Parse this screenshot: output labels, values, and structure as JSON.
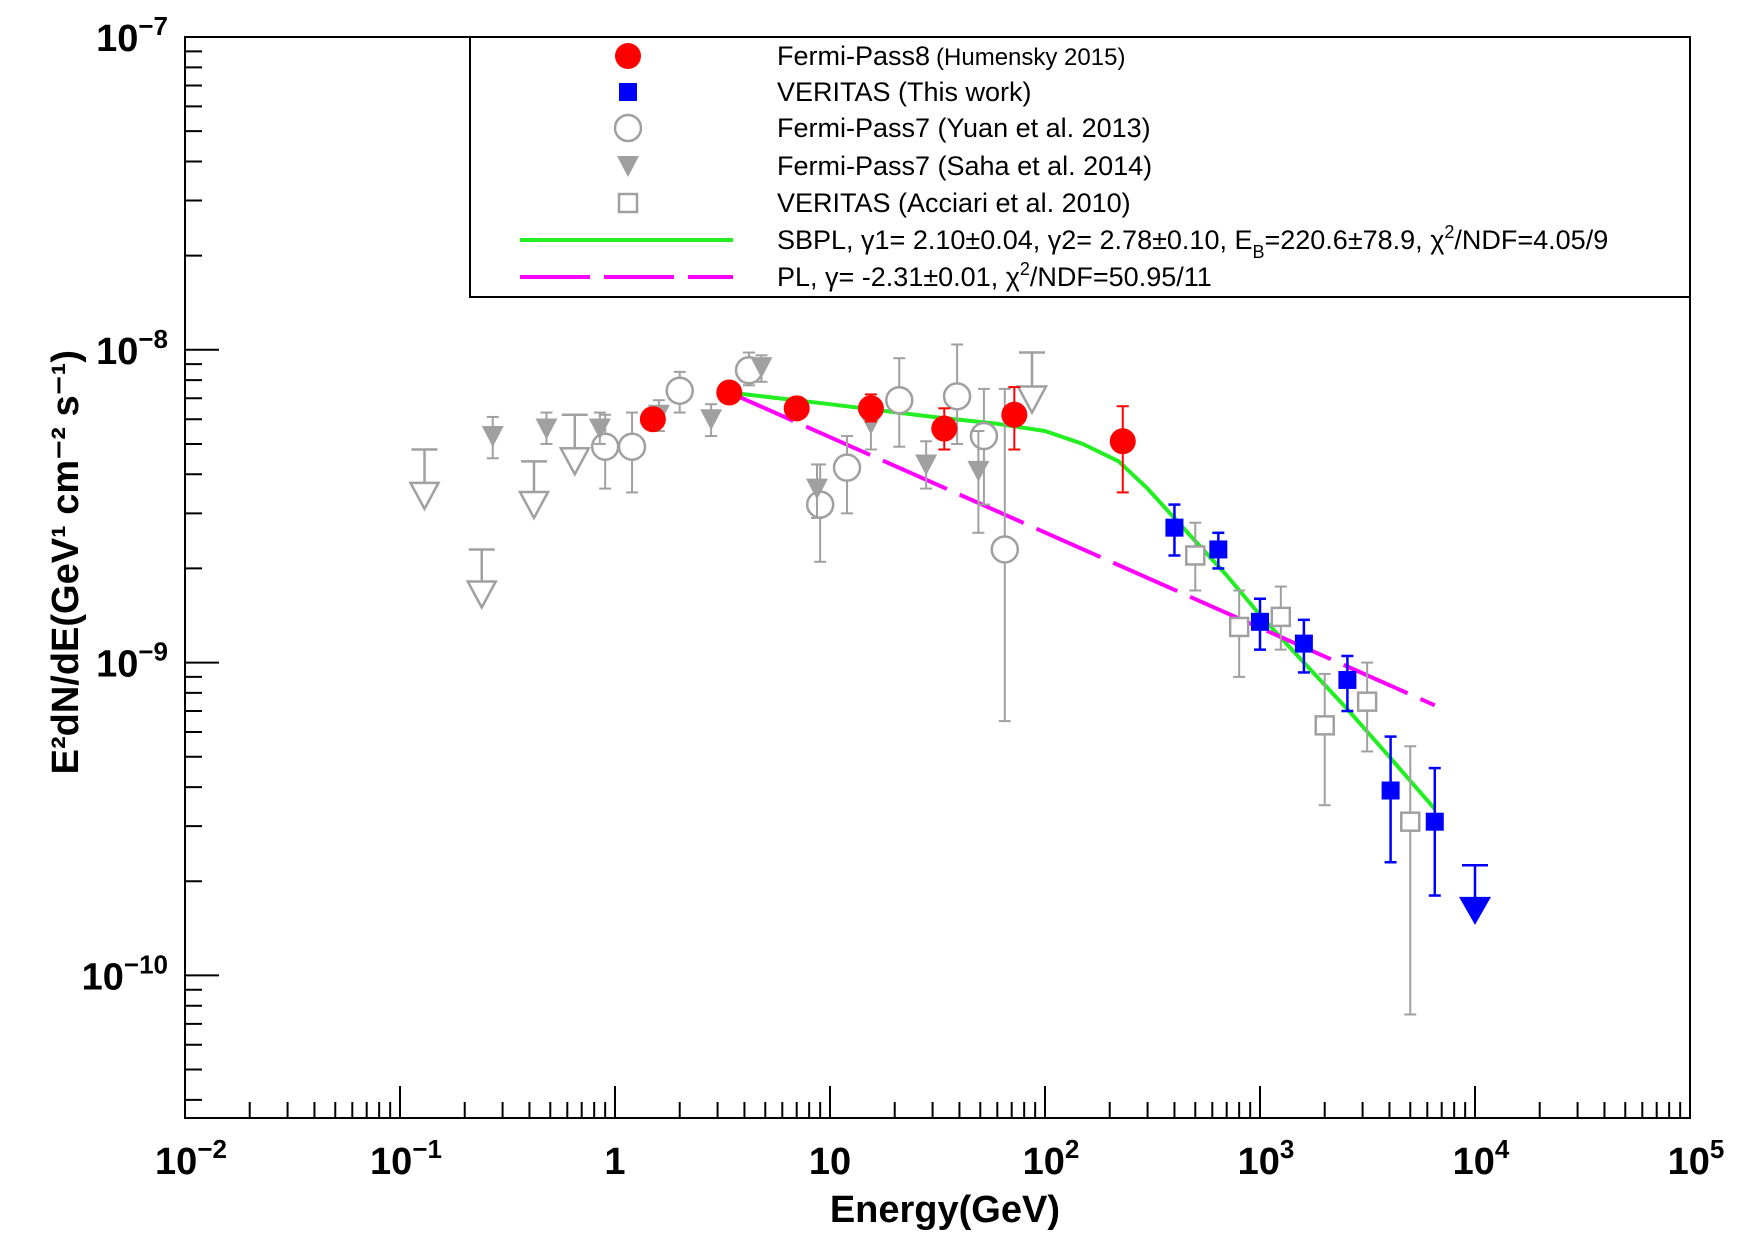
{
  "chart_data": {
    "type": "scatter",
    "title": "",
    "xlabel": "Energy(GeV)",
    "ylabel": "E²dN/dE(GeV¹ cm⁻² s⁻¹)",
    "xscale": "log",
    "yscale": "log",
    "xlim": [
      0.01,
      100000
    ],
    "ylim": [
      3.5e-11,
      1e-07
    ],
    "x_tick_labels": [
      {
        "value": 0.01,
        "base": "10",
        "exp": "−2"
      },
      {
        "value": 0.1,
        "base": "10",
        "exp": "−1"
      },
      {
        "value": 1,
        "base": "1",
        "exp": ""
      },
      {
        "value": 10,
        "base": "10",
        "exp": ""
      },
      {
        "value": 100,
        "base": "10",
        "exp": "2"
      },
      {
        "value": 1000,
        "base": "10",
        "exp": "3"
      },
      {
        "value": 10000,
        "base": "10",
        "exp": "4"
      },
      {
        "value": 100000,
        "base": "10",
        "exp": "5"
      }
    ],
    "y_tick_labels": [
      {
        "value": 1e-10,
        "base": "10",
        "exp": "−10"
      },
      {
        "value": 1e-09,
        "base": "10",
        "exp": "−9"
      },
      {
        "value": 1e-08,
        "base": "10",
        "exp": "−8"
      },
      {
        "value": 1e-07,
        "base": "10",
        "exp": "−7"
      }
    ],
    "legend": {
      "placement": "top-right",
      "entries": [
        {
          "label": "Fermi-Pass8",
          "label_small": "(Humensky 2015)",
          "marker": "filled-circle",
          "color": "#ff0000"
        },
        {
          "label": "VERITAS (This work)",
          "marker": "filled-square",
          "color": "#0000ff"
        },
        {
          "label": "Fermi-Pass7 (Yuan et al. 2013)",
          "marker": "open-circle",
          "color": "#a0a0a0"
        },
        {
          "label": "Fermi-Pass7 (Saha et al. 2014)",
          "marker": "filled-triangle-down",
          "color": "#a0a0a0"
        },
        {
          "label": "VERITAS (Acciari et al. 2010)",
          "marker": "open-square",
          "color": "#a0a0a0"
        },
        {
          "label": "SBPL, γ1= 2.10±0.04, γ2= 2.78±0.10, E",
          "label_sub": "B",
          "label_mid": "=220.6±78.9, χ",
          "label_sup": "2",
          "label_end": "/NDF=4.05/9",
          "marker": "line",
          "color": "#22ee22"
        },
        {
          "label": "PL, γ= -2.31±0.01, χ",
          "label_sup": "2",
          "label_end": "/NDF=50.95/11",
          "marker": "dashed-line",
          "color": "#ff00ff"
        }
      ]
    },
    "series": [
      {
        "name": "Fermi-Pass8 (Humensky 2015)",
        "marker": "filled-circle",
        "color": "#ff0000",
        "points": [
          {
            "x": 1.5,
            "y": 6e-09
          },
          {
            "x": 3.4,
            "y": 7.3e-09
          },
          {
            "x": 7.0,
            "y": 6.5e-09
          },
          {
            "x": 15.5,
            "y": 6.5e-09,
            "ylo": 5.9e-09,
            "yhi": 7.2e-09
          },
          {
            "x": 34,
            "y": 5.6e-09,
            "ylo": 4.8e-09,
            "yhi": 6.5e-09
          },
          {
            "x": 72,
            "y": 6.2e-09,
            "ylo": 4.8e-09,
            "yhi": 7.6e-09
          },
          {
            "x": 230,
            "y": 5.1e-09,
            "ylo": 3.5e-09,
            "yhi": 6.6e-09
          }
        ]
      },
      {
        "name": "VERITAS (This work)",
        "marker": "filled-square",
        "color": "#0000ff",
        "points": [
          {
            "x": 400,
            "y": 2.7e-09,
            "ylo": 2.2e-09,
            "yhi": 3.2e-09
          },
          {
            "x": 640,
            "y": 2.3e-09,
            "ylo": 2e-09,
            "yhi": 2.6e-09
          },
          {
            "x": 1000,
            "y": 1.35e-09,
            "ylo": 1.1e-09,
            "yhi": 1.6e-09
          },
          {
            "x": 1600,
            "y": 1.15e-09,
            "ylo": 9.3e-10,
            "yhi": 1.37e-09
          },
          {
            "x": 2550,
            "y": 8.8e-10,
            "ylo": 7e-10,
            "yhi": 1.05e-09
          },
          {
            "x": 4050,
            "y": 3.9e-10,
            "ylo": 2.3e-10,
            "yhi": 5.8e-10
          },
          {
            "x": 6500,
            "y": 3.1e-10,
            "ylo": 1.8e-10,
            "yhi": 4.6e-10
          }
        ]
      },
      {
        "name": "VERITAS (This work) upper limit",
        "marker": "upper-limit-filled",
        "color": "#0000ff",
        "points": [
          {
            "x": 10000,
            "y": 2.25e-10,
            "arrow_tip": 1.45e-10
          }
        ]
      },
      {
        "name": "Fermi-Pass7 (Yuan et al. 2013)",
        "marker": "open-circle",
        "color": "#a0a0a0",
        "points": [
          {
            "x": 0.9,
            "y": 4.9e-09,
            "ylo": 3.6e-09,
            "yhi": 6.2e-09
          },
          {
            "x": 1.2,
            "y": 4.9e-09,
            "ylo": 3.5e-09,
            "yhi": 6.3e-09
          },
          {
            "x": 2.0,
            "y": 7.4e-09,
            "ylo": 6.3e-09,
            "yhi": 8.5e-09
          },
          {
            "x": 4.2,
            "y": 8.6e-09,
            "ylo": 7.7e-09,
            "yhi": 9.8e-09
          },
          {
            "x": 9.0,
            "y": 3.2e-09,
            "ylo": 2.1e-09,
            "yhi": 4.3e-09
          },
          {
            "x": 12,
            "y": 4.2e-09,
            "ylo": 3e-09,
            "yhi": 5.3e-09
          },
          {
            "x": 21,
            "y": 6.9e-09,
            "ylo": 4.9e-09,
            "yhi": 9.4e-09
          },
          {
            "x": 39,
            "y": 7.1e-09,
            "ylo": 5e-09,
            "yhi": 1.04e-08
          },
          {
            "x": 52,
            "y": 5.3e-09,
            "ylo": 3.2e-09,
            "yhi": 7.5e-09
          },
          {
            "x": 65,
            "y": 2.3e-09,
            "ylo": 6.5e-10,
            "yhi": 7.5e-09
          }
        ]
      },
      {
        "name": "Fermi-Pass7 (Saha et al. 2014)",
        "marker": "filled-triangle-down",
        "color": "#a0a0a0",
        "points": [
          {
            "x": 0.27,
            "y": 5.3e-09,
            "ylo": 4.5e-09,
            "yhi": 6.1e-09
          },
          {
            "x": 0.48,
            "y": 5.6e-09,
            "ylo": 5e-09,
            "yhi": 6.3e-09
          },
          {
            "x": 0.85,
            "y": 5.6e-09,
            "ylo": 5e-09,
            "yhi": 6.3e-09
          },
          {
            "x": 1.6,
            "y": 6.2e-09,
            "ylo": 5.5e-09,
            "yhi": 6.9e-09
          },
          {
            "x": 2.8,
            "y": 6e-09,
            "ylo": 5.3e-09,
            "yhi": 6.7e-09
          },
          {
            "x": 4.8,
            "y": 8.8e-09,
            "ylo": 7.9e-09,
            "yhi": 9.6e-09
          },
          {
            "x": 8.7,
            "y": 3.6e-09,
            "ylo": 2.9e-09,
            "yhi": 4.3e-09
          },
          {
            "x": 15.5,
            "y": 5.8e-09,
            "ylo": 4.8e-09,
            "yhi": 6.8e-09
          },
          {
            "x": 28,
            "y": 4.3e-09,
            "ylo": 3.6e-09,
            "yhi": 5.1e-09
          },
          {
            "x": 49,
            "y": 4.1e-09,
            "ylo": 2.6e-09,
            "yhi": 5.5e-09
          }
        ]
      },
      {
        "name": "Fermi-Pass7 (Saha et al. 2014) upper limits",
        "marker": "upper-limit-open",
        "color": "#a0a0a0",
        "points": [
          {
            "x": 0.13,
            "y": 4.8e-09,
            "arrow_tip": 3.1e-09
          },
          {
            "x": 0.24,
            "y": 2.3e-09,
            "arrow_tip": 1.5e-09
          },
          {
            "x": 0.42,
            "y": 4.4e-09,
            "arrow_tip": 2.9e-09
          },
          {
            "x": 0.65,
            "y": 6.2e-09,
            "arrow_tip": 4e-09
          },
          {
            "x": 87,
            "y": 9.8e-09,
            "arrow_tip": 6.3e-09
          }
        ]
      },
      {
        "name": "VERITAS (Acciari et al. 2010)",
        "marker": "open-square",
        "color": "#a0a0a0",
        "points": [
          {
            "x": 500,
            "y": 2.2e-09,
            "ylo": 1.7e-09,
            "yhi": 2.8e-09
          },
          {
            "x": 800,
            "y": 1.3e-09,
            "ylo": 9e-10,
            "yhi": 1.7e-09
          },
          {
            "x": 1250,
            "y": 1.4e-09,
            "ylo": 1.1e-09,
            "yhi": 1.75e-09
          },
          {
            "x": 2000,
            "y": 6.3e-10,
            "ylo": 3.5e-10,
            "yhi": 9.2e-10
          },
          {
            "x": 3150,
            "y": 7.5e-10,
            "ylo": 5.2e-10,
            "yhi": 1e-09
          },
          {
            "x": 5000,
            "y": 3.1e-10,
            "ylo": 7.5e-11,
            "yhi": 5.4e-10
          }
        ]
      },
      {
        "name": "SBPL fit",
        "marker": "line",
        "color": "#22ee22",
        "points": [
          {
            "x": 3.4,
            "y": 7.3e-09
          },
          {
            "x": 10,
            "y": 6.7e-09
          },
          {
            "x": 30,
            "y": 6.1e-09
          },
          {
            "x": 60,
            "y": 5.8e-09
          },
          {
            "x": 100,
            "y": 5.5e-09
          },
          {
            "x": 150,
            "y": 5e-09
          },
          {
            "x": 220,
            "y": 4.4e-09
          },
          {
            "x": 300,
            "y": 3.6e-09
          },
          {
            "x": 450,
            "y": 2.65e-09
          },
          {
            "x": 700,
            "y": 1.9e-09
          },
          {
            "x": 1000,
            "y": 1.42e-09
          },
          {
            "x": 1600,
            "y": 1e-09
          },
          {
            "x": 2500,
            "y": 7.2e-10
          },
          {
            "x": 4000,
            "y": 5e-10
          },
          {
            "x": 6500,
            "y": 3.4e-10
          }
        ]
      },
      {
        "name": "PL fit",
        "marker": "dashed-line",
        "color": "#ff00ff",
        "points": [
          {
            "x": 3.4,
            "y": 7.3e-09
          },
          {
            "x": 6500,
            "y": 7.3e-10
          }
        ]
      }
    ]
  }
}
